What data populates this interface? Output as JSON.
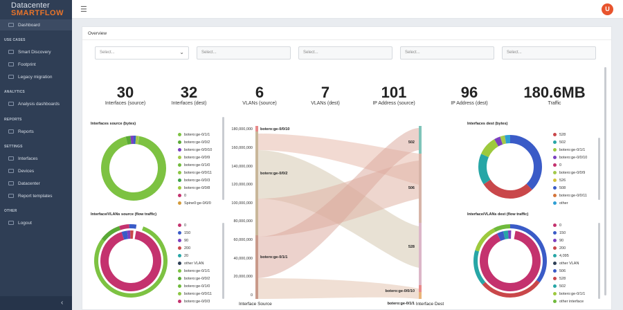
{
  "app": {
    "logo_line1": "Datacenter",
    "logo_line2": "SMARTFLOW",
    "user_initial": "U",
    "accent": "#e9742a"
  },
  "sidebar": {
    "items": [
      {
        "label": "Dashboard"
      },
      {
        "label": "Smart Discovery"
      },
      {
        "label": "Footprint"
      },
      {
        "label": "Legacy migration"
      },
      {
        "label": "Analysis dashboards"
      },
      {
        "label": "Reports"
      },
      {
        "label": "Interfaces"
      },
      {
        "label": "Devices"
      },
      {
        "label": "Datacenter"
      },
      {
        "label": "Report templates"
      },
      {
        "label": "Logout"
      }
    ],
    "sections": {
      "use_cases": "USE CASES",
      "analytics": "ANALYTICS",
      "reports": "REPORTS",
      "settings": "SETTINGS",
      "other": "OTHER"
    }
  },
  "overview": {
    "title": "Overview",
    "selects": [
      "Select...",
      "Select...",
      "Select...",
      "Select...",
      "Select..."
    ],
    "kpis": [
      {
        "value": "30",
        "label": "Interfaces (source)"
      },
      {
        "value": "32",
        "label": "Interfaces (dest)"
      },
      {
        "value": "6",
        "label": "VLANs (source)"
      },
      {
        "value": "7",
        "label": "VLANs (dest)"
      },
      {
        "value": "101",
        "label": "IP Address (source)"
      },
      {
        "value": "96",
        "label": "IP Address (dest)"
      },
      {
        "value": "180.6MB",
        "label": "Traffic"
      }
    ]
  },
  "panels": {
    "if_src_title": "Interfaces source (bytes)",
    "if_src_legend": [
      {
        "label": "botero:ge-0/1/1",
        "color": "#7dc242"
      },
      {
        "label": "botero:ge-0/0/2",
        "color": "#5aa936"
      },
      {
        "label": "botero:ge-0/0/10",
        "color": "#7b3fbf"
      },
      {
        "label": "botero:ge-0/0/9",
        "color": "#a2c94a"
      },
      {
        "label": "botero:ge-0/1/0",
        "color": "#6fba3c"
      },
      {
        "label": "botero:ge-0/0/11",
        "color": "#8cc644"
      },
      {
        "label": "botero:ge-0/0/3",
        "color": "#3da24a"
      },
      {
        "label": "botero:ge-0/0/8",
        "color": "#9dc93d"
      },
      {
        "label": "0",
        "color": "#c4326e"
      },
      {
        "label": "Spine0:ge-0/0/0",
        "color": "#d49b3a"
      }
    ],
    "vlan_src_title": "Interface/VLANs source (flow traffic)",
    "vlan_src_legend": [
      {
        "label": "0",
        "color": "#c4326e"
      },
      {
        "label": "150",
        "color": "#3a5bc7"
      },
      {
        "label": "90",
        "color": "#7b3fbf"
      },
      {
        "label": "200",
        "color": "#c9474a"
      },
      {
        "label": "20",
        "color": "#27a6a6"
      },
      {
        "label": "other VLAN",
        "color": "#2d3f56"
      },
      {
        "label": "botero:ge-0/1/1",
        "color": "#7dc242"
      },
      {
        "label": "botero:ge-0/0/2",
        "color": "#5aa936"
      },
      {
        "label": "botero:ge-0/1/0",
        "color": "#6fba3c"
      },
      {
        "label": "botero:ge-0/0/11",
        "color": "#8cc644"
      },
      {
        "label": "botero:ge-0/0/3",
        "color": "#c4326e"
      }
    ],
    "if_dst_title": "Interfaces dest (bytes)",
    "if_dst_legend": [
      {
        "label": "528",
        "color": "#c9474a"
      },
      {
        "label": "502",
        "color": "#27a6a6"
      },
      {
        "label": "botero:ge-0/1/1",
        "color": "#9dc93d"
      },
      {
        "label": "botero:ge-0/0/10",
        "color": "#7b3fbf"
      },
      {
        "label": "0",
        "color": "#c4326e"
      },
      {
        "label": "botero:ge-0/0/9",
        "color": "#a2c94a"
      },
      {
        "label": "526",
        "color": "#d4c23a"
      },
      {
        "label": "508",
        "color": "#3a5bc7"
      },
      {
        "label": "botero:ge-0/0/11",
        "color": "#d4743a"
      },
      {
        "label": "other",
        "color": "#2f9fd4"
      }
    ],
    "vlan_dst_title": "Interface/VLANs dest (flow traffic)",
    "vlan_dst_legend": [
      {
        "label": "0",
        "color": "#c4326e"
      },
      {
        "label": "150",
        "color": "#3a5bc7"
      },
      {
        "label": "90",
        "color": "#7b3fbf"
      },
      {
        "label": "200",
        "color": "#c9474a"
      },
      {
        "label": "4,095",
        "color": "#27a6a6"
      },
      {
        "label": "other VLAN",
        "color": "#2d3f56"
      },
      {
        "label": "506",
        "color": "#3a5bc7"
      },
      {
        "label": "528",
        "color": "#c9474a"
      },
      {
        "label": "502",
        "color": "#27a6a6"
      },
      {
        "label": "botero:ge-0/1/1",
        "color": "#9dc93d"
      },
      {
        "label": "other interface",
        "color": "#6fba3c"
      }
    ]
  },
  "sankey": {
    "y_ticks": [
      "0",
      "20,000,000",
      "40,000,000",
      "60,000,000",
      "80,000,000",
      "100,000,000",
      "120,000,000",
      "140,000,000",
      "160,000,000",
      "180,000,000"
    ],
    "source_axis": "Interface Source",
    "dest_axis": "Interface Dest",
    "source_nodes": [
      "botero:ge-0/0/10",
      "botero:ge-0/0/2",
      "botero:ge-0/1/1"
    ],
    "dest_nodes": [
      "502",
      "506",
      "528",
      "botero:ge-0/0/10",
      "botero:ge-0/1/1"
    ]
  }
}
